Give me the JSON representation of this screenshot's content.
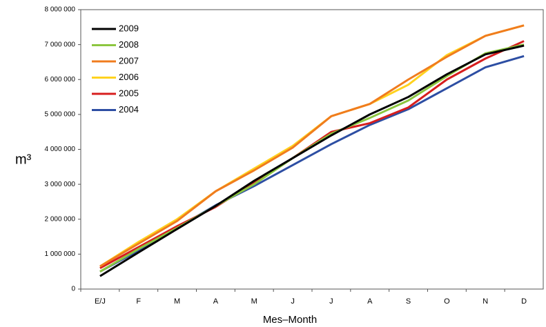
{
  "chart_data": {
    "type": "line",
    "x_label": "Mes–Month",
    "y_label": "m³",
    "categories": [
      "E/J",
      "F",
      "M",
      "A",
      "M",
      "J",
      "J",
      "A",
      "S",
      "O",
      "N",
      "D"
    ],
    "series": [
      {
        "name": "2009",
        "color": "#000000",
        "values": [
          370000,
          1050000,
          1720000,
          2380000,
          3100000,
          3750000,
          4400000,
          5000000,
          5500000,
          6150000,
          6720000,
          6970000
        ]
      },
      {
        "name": "2008",
        "color": "#8cc63f",
        "values": [
          500000,
          1150000,
          1750000,
          2380000,
          3000000,
          3750000,
          4450000,
          4900000,
          5400000,
          6100000,
          6750000,
          7000000
        ]
      },
      {
        "name": "2007",
        "color": "#f07c1e",
        "values": [
          650000,
          1300000,
          1950000,
          2800000,
          3400000,
          4050000,
          4950000,
          5300000,
          6000000,
          6650000,
          7250000,
          7550000
        ]
      },
      {
        "name": "2006",
        "color": "#ffd21e",
        "values": [
          650000,
          1350000,
          2000000,
          2800000,
          3450000,
          4100000,
          4950000,
          5300000,
          5850000,
          6700000,
          7250000,
          7550000
        ]
      },
      {
        "name": "2005",
        "color": "#d71e1e",
        "values": [
          600000,
          1200000,
          1800000,
          2350000,
          3050000,
          3750000,
          4500000,
          4750000,
          5200000,
          6000000,
          6600000,
          7100000
        ]
      },
      {
        "name": "2004",
        "color": "#2d4ea3",
        "values": [
          500000,
          1100000,
          1750000,
          2400000,
          2950000,
          3550000,
          4150000,
          4700000,
          5150000,
          5750000,
          6350000,
          6670000
        ]
      }
    ],
    "ylim": [
      0,
      8000000
    ],
    "yticks": [
      0,
      {
        "value": 1000000,
        "label": "1 000 000"
      },
      {
        "value": 2000000,
        "label": "2 000 000"
      },
      {
        "value": 3000000,
        "label": "3 000 000"
      },
      {
        "value": 4000000,
        "label": "4 000 000"
      },
      {
        "value": 5000000,
        "label": "5 000 000"
      },
      {
        "value": 6000000,
        "label": "6 000 000"
      },
      {
        "value": 7000000,
        "label": "7 000 000"
      },
      {
        "value": 8000000,
        "label": "8 000 000"
      }
    ],
    "grid": false,
    "legend": "top-left"
  }
}
